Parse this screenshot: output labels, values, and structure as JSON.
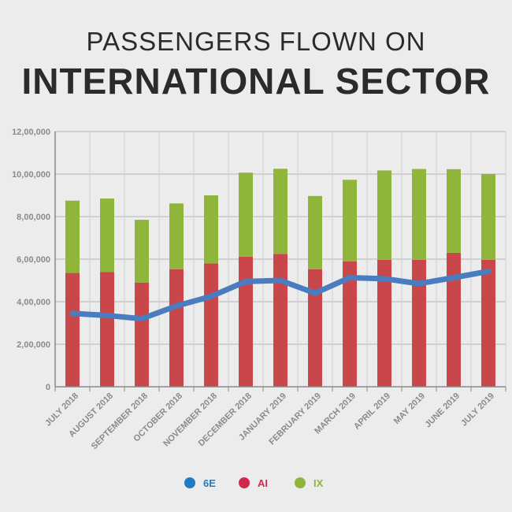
{
  "title": {
    "line1": "PASSENGERS FLOWN ON",
    "line2": "INTERNATIONAL SECTOR"
  },
  "chart_data": {
    "type": "bar",
    "subtype": "stacked-bar-with-line",
    "categories": [
      "JULY 2018",
      "AUGUST 2018",
      "SEPTEMBER 2018",
      "OCTOBER 2018",
      "NOVEMBER 2018",
      "DECEMBER 2018",
      "JANUARY 2019",
      "FEBRUARY 2019",
      "MARCH 2019",
      "APRIL 2019",
      "MAY 2019",
      "JUNE 2019",
      "JULY 2019"
    ],
    "series": [
      {
        "name": "AI",
        "kind": "bar",
        "color": "#c9474b",
        "values": [
          535000,
          540000,
          490000,
          552000,
          580000,
          612000,
          625000,
          552000,
          590000,
          597000,
          597000,
          630000,
          597000
        ]
      },
      {
        "name": "IX",
        "kind": "bar",
        "color": "#8fb63a",
        "values": [
          340000,
          345000,
          295000,
          310000,
          320000,
          395000,
          400000,
          345000,
          383000,
          420000,
          427000,
          393000,
          403000
        ]
      },
      {
        "name": "6E",
        "kind": "line",
        "color": "#4a7cc0",
        "values": [
          345000,
          335000,
          320000,
          380000,
          425000,
          495000,
          500000,
          440000,
          513000,
          508000,
          485000,
          513000,
          543000
        ]
      }
    ],
    "title": "PASSENGERS FLOWN ON INTERNATIONAL SECTOR",
    "xlabel": "",
    "ylabel": "",
    "ylim": [
      0,
      1200000
    ],
    "yticks": [
      0,
      200000,
      400000,
      600000,
      800000,
      1000000,
      1200000
    ],
    "ytick_labels": [
      "0",
      "2,00,000",
      "4,00,000",
      "6,00,000",
      "8,00,000",
      "10,00,000",
      "12,00,000"
    ],
    "grid": true,
    "legend": [
      {
        "name": "6E",
        "color": "#1f7cc4"
      },
      {
        "name": "AI",
        "color": "#d2284b"
      },
      {
        "name": "IX",
        "color": "#8fb63a"
      }
    ],
    "legend_position": "bottom-center"
  }
}
